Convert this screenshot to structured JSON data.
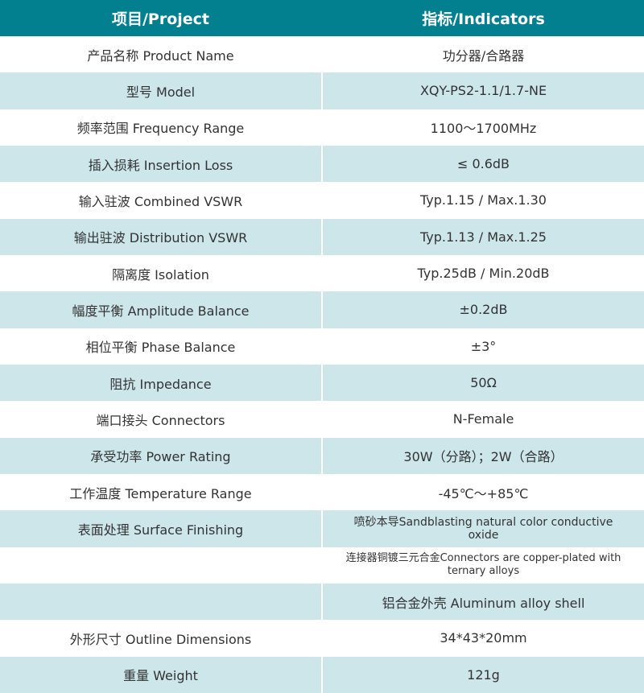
{
  "header": {
    "project": "项目/Project",
    "indicators": "指标/Indicators"
  },
  "rows": [
    {
      "label": "产品名称 Product Name",
      "value": "功分器/合路器"
    },
    {
      "label": "型号 Model",
      "value": "XQY-PS2-1.1/1.7-NE"
    },
    {
      "label": "频率范围 Frequency Range",
      "value": "1100～1700MHz"
    },
    {
      "label": "插入损耗 Insertion Loss",
      "value": "≤ 0.6dB"
    },
    {
      "label": "输入驻波 Combined VSWR",
      "value": "Typ.1.15 / Max.1.30"
    },
    {
      "label": "输出驻波 Distribution VSWR",
      "value": "Typ.1.13 / Max.1.25"
    },
    {
      "label": "隔离度 Isolation",
      "value": "Typ.25dB / Min.20dB"
    },
    {
      "label": "幅度平衡 Amplitude Balance",
      "value": "±0.2dB"
    },
    {
      "label": "相位平衡 Phase Balance",
      "value": "±3°"
    },
    {
      "label": "阻抗 Impedance",
      "value": "50Ω"
    },
    {
      "label": "端口接头 Connectors",
      "value": "N-Female"
    },
    {
      "label": "承受功率 Power Rating",
      "value": "30W（分路）；2W（合路）"
    },
    {
      "label": "工作温度 Temperature Range",
      "value": "-45℃～+85℃"
    },
    {
      "label": "表面处理 Surface Finishing",
      "value": "喷砂本导Sandblasting natural color conductive oxide",
      "small": true
    },
    {
      "label": "",
      "value": "连接器铜镀三元合金Connectors are copper-plated with ternary alloys",
      "small": true
    },
    {
      "label": "",
      "value": "铝合金外壳 Aluminum alloy shell"
    },
    {
      "label": "外形尺寸 Outline Dimensions",
      "value": "34*43*20mm"
    },
    {
      "label": "重量 Weight",
      "value": "121g"
    }
  ],
  "colors": {
    "header": "#028090",
    "alt_row": "#cce6ea"
  }
}
